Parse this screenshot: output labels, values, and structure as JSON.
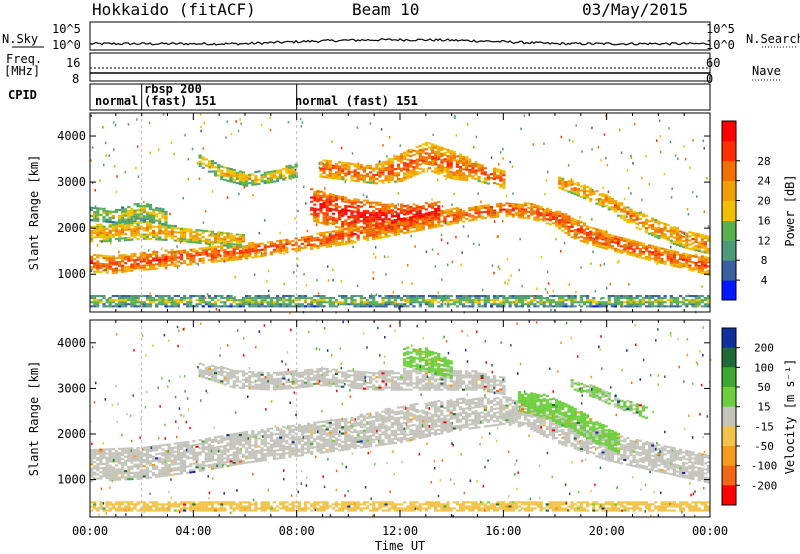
{
  "header": {
    "station": "Hokkaido (fitACF)",
    "beam": "Beam 10",
    "date": "03/May/2015"
  },
  "strips": {
    "nsky_label": "N.Sky",
    "nsky_ticks": [
      "10^5",
      "10^0"
    ],
    "nsearch_label": "N.Search",
    "freq_label_1": "Freq.",
    "freq_label_2": "[MHz]",
    "freq_ticks": [
      "16",
      "8"
    ],
    "nave_label": "Nave",
    "nave_ticks": [
      "60",
      "0"
    ],
    "cpid_label": "CPID",
    "cpid_segments": [
      {
        "line1": "",
        "line2": "normal",
        "start_hour": 0
      },
      {
        "line1": "rbsp 200",
        "line2": "(fast) 151",
        "start_hour": 2
      },
      {
        "line1": "",
        "line2": "normal (fast)  151",
        "start_hour": 8
      }
    ]
  },
  "colors": {
    "power_scale": [
      "#0018ff",
      "#3a5fa0",
      "#4e9a78",
      "#58b050",
      "#f0c000",
      "#f0a000",
      "#f07000",
      "#ff3000",
      "#ff0000"
    ],
    "velocity_scale": [
      "#1030a0",
      "#1f6a34",
      "#3ea832",
      "#6ecf3e",
      "#c4c4bc",
      "#f2c34a",
      "#f49a1c",
      "#f26716",
      "#ff0000"
    ],
    "ground_scatter": "#c4c4bc"
  },
  "chart_data": [
    {
      "type": "heatmap",
      "title": "",
      "xlabel": "Time UT",
      "ylabel": "Slant Range [km]",
      "x_ticks": [
        "00:00",
        "04:00",
        "08:00",
        "12:00",
        "16:00",
        "20:00",
        "00:00"
      ],
      "x_range_hours": [
        0,
        24
      ],
      "y_ticks": [
        "1000",
        "2000",
        "3000",
        "4000"
      ],
      "ylim": [
        180,
        4500
      ],
      "colorbar_label": "Power [dB]",
      "colorbar_ticks": [
        "4",
        "8",
        "12",
        "16",
        "20",
        "24",
        "28"
      ],
      "colorbar_range": [
        0,
        30
      ],
      "bands": [
        {
          "points": [
            [
              0.0,
              1220,
              180
            ],
            [
              0.8,
              1200,
              200
            ],
            [
              1.5,
              1230,
              180
            ],
            [
              2.5,
              1300,
              200
            ],
            [
              3.5,
              1350,
              180
            ],
            [
              4.5,
              1400,
              160
            ],
            [
              6.0,
              1480,
              160
            ],
            [
              7.0,
              1560,
              150
            ],
            [
              8.0,
              1640,
              150
            ],
            [
              9.0,
              1720,
              160
            ],
            [
              10.0,
              1820,
              170
            ],
            [
              11.0,
              1930,
              180
            ],
            [
              12.0,
              2040,
              180
            ],
            [
              13.0,
              2140,
              170
            ],
            [
              14.0,
              2240,
              160
            ],
            [
              15.0,
              2330,
              150
            ],
            [
              16.0,
              2400,
              150
            ],
            [
              17.0,
              2350,
              160
            ],
            [
              18.0,
              2200,
              180
            ],
            [
              18.6,
              2000,
              220
            ],
            [
              19.2,
              1850,
              200
            ],
            [
              20.0,
              1700,
              180
            ],
            [
              21.0,
              1550,
              170
            ],
            [
              22.0,
              1400,
              170
            ],
            [
              23.0,
              1280,
              180
            ],
            [
              24.0,
              1150,
              200
            ]
          ],
          "power": 21
        },
        {
          "points": [
            [
              0.0,
              1870,
              180
            ],
            [
              1.0,
              1900,
              200
            ],
            [
              2.0,
              1950,
              200
            ],
            [
              3.0,
              1880,
              160
            ],
            [
              4.0,
              1820,
              150
            ],
            [
              5.0,
              1760,
              150
            ],
            [
              6.0,
              1700,
              150
            ]
          ],
          "power": 16
        },
        {
          "points": [
            [
              8.5,
              2500,
              350
            ],
            [
              9.5,
              2350,
              350
            ],
            [
              10.5,
              2250,
              350
            ],
            [
              11.5,
              2200,
              300
            ],
            [
              12.5,
              2250,
              250
            ],
            [
              13.5,
              2350,
              200
            ]
          ],
          "power": 24
        },
        {
          "points": [
            [
              8.8,
              3300,
              200
            ],
            [
              10.0,
              3200,
              180
            ],
            [
              11.0,
              3150,
              200
            ],
            [
              12.0,
              3300,
              300
            ],
            [
              13.0,
              3550,
              300
            ],
            [
              14.0,
              3350,
              300
            ],
            [
              15.0,
              3200,
              200
            ],
            [
              16.0,
              3050,
              200
            ]
          ],
          "power": 20
        },
        {
          "points": [
            [
              4.2,
              3450,
              120
            ],
            [
              5.0,
              3200,
              150
            ],
            [
              6.0,
              3050,
              150
            ],
            [
              7.0,
              3100,
              120
            ],
            [
              8.0,
              3250,
              150
            ]
          ],
          "power": 14
        },
        {
          "points": [
            [
              18.0,
              3000,
              120
            ],
            [
              19.0,
              2800,
              150
            ],
            [
              20.0,
              2550,
              150
            ],
            [
              21.0,
              2200,
              180
            ],
            [
              22.0,
              1950,
              200
            ],
            [
              23.0,
              1750,
              200
            ],
            [
              24.0,
              1600,
              180
            ]
          ],
          "power": 18
        },
        {
          "points": [
            [
              0.0,
              2300,
              150
            ],
            [
              1.0,
              2250,
              150
            ],
            [
              2.0,
              2350,
              200
            ],
            [
              3.0,
              2200,
              150
            ]
          ],
          "power": 12
        },
        {
          "points": [
            [
              0.0,
              400,
              120
            ],
            [
              6.0,
              400,
              120
            ],
            [
              12.0,
              400,
              120
            ],
            [
              18.0,
              400,
              120
            ],
            [
              24.0,
              400,
              120
            ]
          ],
          "power": 10
        }
      ]
    },
    {
      "type": "heatmap",
      "title": "",
      "xlabel": "Time UT",
      "ylabel": "Slant Range [km]",
      "x_ticks": [
        "00:00",
        "04:00",
        "08:00",
        "12:00",
        "16:00",
        "20:00",
        "00:00"
      ],
      "x_range_hours": [
        0,
        24
      ],
      "y_ticks": [
        "1000",
        "2000",
        "3000",
        "4000"
      ],
      "ylim": [
        180,
        4500
      ],
      "colorbar_label": "Velocity [m s⁻¹]",
      "colorbar_ticks": [
        "200",
        "100",
        "50",
        "15",
        "-15",
        "-50",
        "-100",
        "-200"
      ],
      "colorbar_range": [
        -250,
        250
      ],
      "bands": [
        {
          "points": [
            [
              0.0,
              1300,
              350
            ],
            [
              2.0,
              1350,
              350
            ],
            [
              4.0,
              1500,
              350
            ],
            [
              6.0,
              1700,
              350
            ],
            [
              8.0,
              1850,
              350
            ],
            [
              10.0,
              2000,
              350
            ],
            [
              12.0,
              2200,
              400
            ],
            [
              14.0,
              2400,
              350
            ],
            [
              16.0,
              2500,
              300
            ],
            [
              17.0,
              2400,
              300
            ],
            [
              18.0,
              2100,
              300
            ],
            [
              19.0,
              1900,
              300
            ],
            [
              20.0,
              1700,
              300
            ],
            [
              22.0,
              1450,
              300
            ],
            [
              24.0,
              1200,
              300
            ]
          ],
          "velocity": 0
        },
        {
          "points": [
            [
              4.2,
              3400,
              150
            ],
            [
              5.5,
              3200,
              200
            ],
            [
              7.0,
              3150,
              200
            ],
            [
              9.0,
              3250,
              200
            ],
            [
              11.0,
              3150,
              200
            ],
            [
              13.0,
              3200,
              250
            ],
            [
              15.0,
              3150,
              200
            ],
            [
              16.0,
              3050,
              200
            ]
          ],
          "velocity": 0
        },
        {
          "points": [
            [
              12.0,
              3700,
              200
            ],
            [
              13.0,
              3600,
              250
            ],
            [
              14.0,
              3400,
              200
            ]
          ],
          "velocity": 40
        },
        {
          "points": [
            [
              16.5,
              2700,
              200
            ],
            [
              17.5,
              2600,
              250
            ],
            [
              18.5,
              2350,
              250
            ],
            [
              19.5,
              2050,
              250
            ],
            [
              20.5,
              1750,
              200
            ]
          ],
          "velocity": 40
        },
        {
          "points": [
            [
              18.5,
              3100,
              100
            ],
            [
              19.5,
              2900,
              120
            ],
            [
              20.5,
              2650,
              120
            ],
            [
              21.5,
              2450,
              120
            ]
          ],
          "velocity": 30
        },
        {
          "points": [
            [
              0.0,
              400,
              100
            ],
            [
              6.0,
              400,
              100
            ],
            [
              12.0,
              400,
              100
            ],
            [
              18.0,
              400,
              100
            ],
            [
              24.0,
              400,
              100
            ]
          ],
          "velocity": -40
        }
      ]
    }
  ]
}
